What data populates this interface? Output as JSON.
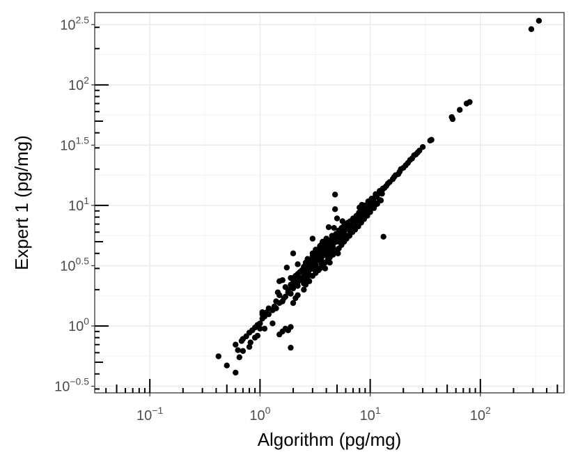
{
  "chart_data": {
    "type": "scatter",
    "xlabel": "Algorithm (pg/mg)",
    "ylabel": "Expert 1 (pg/mg)",
    "x_scale": "log10",
    "y_scale": "log10",
    "xlim": [
      0.0316,
      575
    ],
    "ylim": [
      0.2786,
      398
    ],
    "x_ticks": [
      {
        "value": 0.1,
        "base": "10",
        "exp": "−1"
      },
      {
        "value": 1,
        "base": "10",
        "exp": "0"
      },
      {
        "value": 10,
        "base": "10",
        "exp": "1"
      },
      {
        "value": 100,
        "base": "10",
        "exp": "2"
      }
    ],
    "y_ticks": [
      {
        "value": 0.3162,
        "base": "10",
        "exp": "−0.5"
      },
      {
        "value": 1,
        "base": "10",
        "exp": "0"
      },
      {
        "value": 3.162,
        "base": "10",
        "exp": "0.5"
      },
      {
        "value": 10,
        "base": "10",
        "exp": "1"
      },
      {
        "value": 31.62,
        "base": "10",
        "exp": "1.5"
      },
      {
        "value": 100,
        "base": "10",
        "exp": "2"
      },
      {
        "value": 316.2,
        "base": "10",
        "exp": "2.5"
      }
    ],
    "grid": true,
    "point_color": "#000000",
    "points": [
      [
        0.42,
        0.56
      ],
      [
        0.6,
        0.7
      ],
      [
        0.63,
        0.63
      ],
      [
        0.68,
        0.75
      ],
      [
        0.7,
        0.78
      ],
      [
        0.75,
        0.82
      ],
      [
        0.8,
        0.88
      ],
      [
        0.85,
        0.92
      ],
      [
        0.9,
        0.97
      ],
      [
        0.95,
        1.02
      ],
      [
        1.0,
        1.05
      ],
      [
        1.05,
        1.15
      ],
      [
        1.1,
        1.2
      ],
      [
        1.15,
        1.3
      ],
      [
        1.2,
        1.25
      ],
      [
        1.3,
        1.35
      ],
      [
        1.35,
        1.45
      ],
      [
        1.4,
        1.4
      ],
      [
        1.5,
        1.55
      ],
      [
        1.6,
        1.6
      ],
      [
        1.65,
        1.7
      ],
      [
        1.7,
        1.75
      ],
      [
        1.8,
        1.9
      ],
      [
        1.9,
        1.85
      ],
      [
        2.0,
        2.05
      ],
      [
        2.1,
        2.2
      ],
      [
        2.2,
        2.3
      ],
      [
        2.3,
        2.4
      ],
      [
        2.4,
        2.45
      ],
      [
        2.5,
        2.6
      ],
      [
        2.6,
        2.7
      ],
      [
        2.7,
        2.8
      ],
      [
        2.8,
        2.9
      ],
      [
        2.9,
        3.0
      ],
      [
        3.0,
        3.1
      ],
      [
        3.1,
        3.3
      ],
      [
        3.2,
        3.2
      ],
      [
        3.3,
        3.5
      ],
      [
        3.4,
        3.6
      ],
      [
        3.5,
        3.7
      ],
      [
        3.6,
        3.9
      ],
      [
        3.7,
        3.8
      ],
      [
        3.8,
        4.0
      ],
      [
        3.9,
        4.2
      ],
      [
        4.0,
        4.3
      ],
      [
        4.2,
        4.5
      ],
      [
        4.3,
        4.4
      ],
      [
        4.4,
        4.7
      ],
      [
        4.5,
        4.8
      ],
      [
        4.7,
        4.9
      ],
      [
        4.8,
        5.1
      ],
      [
        5.0,
        5.3
      ],
      [
        5.2,
        5.5
      ],
      [
        5.4,
        5.7
      ],
      [
        5.6,
        5.9
      ],
      [
        5.8,
        6.1
      ],
      [
        6.0,
        6.4
      ],
      [
        6.2,
        6.6
      ],
      [
        6.5,
        6.9
      ],
      [
        6.8,
        7.2
      ],
      [
        7.0,
        7.5
      ],
      [
        7.3,
        7.8
      ],
      [
        7.6,
        8.0
      ],
      [
        7.9,
        8.3
      ],
      [
        8.2,
        8.6
      ],
      [
        8.5,
        9.0
      ],
      [
        8.8,
        9.3
      ],
      [
        9.1,
        9.6
      ],
      [
        9.4,
        9.9
      ],
      [
        9.8,
        10.3
      ],
      [
        10.2,
        10.7
      ],
      [
        10.6,
        11.1
      ],
      [
        11.0,
        11.6
      ],
      [
        11.5,
        12.0
      ],
      [
        12.0,
        12.6
      ],
      [
        12.5,
        13.1
      ],
      [
        13.0,
        13.6
      ],
      [
        14.0,
        14.5
      ],
      [
        15.0,
        15.6
      ],
      [
        16.0,
        16.5
      ],
      [
        17.0,
        17.8
      ],
      [
        18.5,
        19.0
      ],
      [
        20.0,
        20.5
      ],
      [
        22.0,
        22.5
      ],
      [
        24.0,
        24.5
      ],
      [
        26.0,
        26.5
      ],
      [
        28.0,
        28.5
      ],
      [
        30.0,
        30.5
      ],
      [
        35.0,
        34.5
      ],
      [
        36.0,
        35.0
      ],
      [
        55.0,
        54.0
      ],
      [
        56.0,
        52.0
      ],
      [
        65.0,
        62.0
      ],
      [
        75.0,
        70.0
      ],
      [
        80.0,
        72.0
      ],
      [
        290.0,
        290.0
      ],
      [
        340.0,
        340.0
      ],
      [
        0.6,
        0.41
      ],
      [
        0.5,
        0.47
      ],
      [
        0.65,
        0.55
      ],
      [
        0.7,
        0.62
      ],
      [
        0.8,
        0.67
      ],
      [
        0.82,
        0.73
      ],
      [
        0.9,
        0.8
      ],
      [
        0.95,
        0.83
      ],
      [
        1.0,
        0.95
      ],
      [
        1.3,
        1.05
      ],
      [
        1.1,
        0.95
      ],
      [
        1.7,
        0.95
      ],
      [
        1.6,
        0.9
      ],
      [
        1.5,
        0.85
      ],
      [
        1.8,
        0.92
      ],
      [
        1.9,
        0.98
      ],
      [
        1.05,
        1.25
      ],
      [
        1.05,
        1.3
      ],
      [
        2.0,
        1.55
      ],
      [
        2.1,
        1.7
      ],
      [
        2.2,
        1.8
      ],
      [
        2.5,
        2.0
      ],
      [
        2.6,
        2.2
      ],
      [
        2.8,
        2.35
      ],
      [
        3.0,
        2.6
      ],
      [
        3.2,
        2.75
      ],
      [
        3.4,
        2.9
      ],
      [
        3.5,
        3.0
      ],
      [
        3.7,
        3.2
      ],
      [
        3.9,
        3.35
      ],
      [
        4.1,
        3.5
      ],
      [
        4.3,
        3.7
      ],
      [
        4.6,
        3.9
      ],
      [
        4.9,
        4.2
      ],
      [
        5.2,
        4.4
      ],
      [
        5.5,
        4.7
      ],
      [
        5.8,
        5.0
      ],
      [
        6.1,
        5.3
      ],
      [
        6.5,
        5.6
      ],
      [
        6.9,
        6.0
      ],
      [
        7.3,
        6.3
      ],
      [
        7.8,
        6.7
      ],
      [
        8.3,
        7.2
      ],
      [
        8.8,
        7.7
      ],
      [
        9.4,
        8.2
      ],
      [
        10.0,
        8.8
      ],
      [
        10.8,
        9.5
      ],
      [
        11.6,
        10.3
      ],
      [
        12.5,
        11.0
      ],
      [
        1.6,
        2.4
      ],
      [
        1.8,
        2.0
      ],
      [
        2.0,
        2.5
      ],
      [
        2.2,
        2.7
      ],
      [
        2.4,
        2.9
      ],
      [
        2.6,
        3.2
      ],
      [
        2.8,
        3.4
      ],
      [
        3.0,
        3.8
      ],
      [
        3.1,
        3.55
      ],
      [
        3.3,
        3.95
      ],
      [
        3.5,
        4.2
      ],
      [
        3.7,
        4.4
      ],
      [
        3.9,
        4.6
      ],
      [
        4.1,
        4.9
      ],
      [
        4.4,
        5.2
      ],
      [
        4.6,
        5.5
      ],
      [
        4.9,
        5.8
      ],
      [
        5.2,
        6.2
      ],
      [
        5.5,
        6.5
      ],
      [
        5.8,
        6.8
      ],
      [
        6.2,
        7.1
      ],
      [
        6.6,
        7.4
      ],
      [
        7.0,
        7.8
      ],
      [
        7.5,
        8.2
      ],
      [
        8.0,
        8.6
      ],
      [
        8.6,
        9.2
      ],
      [
        9.2,
        9.8
      ],
      [
        9.8,
        10.5
      ],
      [
        10.5,
        11.2
      ],
      [
        11.3,
        12.0
      ],
      [
        12.1,
        12.8
      ],
      [
        13.0,
        13.8
      ],
      [
        1.2,
        1.4
      ],
      [
        1.4,
        1.6
      ],
      [
        1.5,
        1.8
      ],
      [
        1.7,
        2.1
      ],
      [
        1.9,
        2.2
      ],
      [
        2.1,
        2.4
      ],
      [
        2.3,
        2.5
      ],
      [
        2.6,
        2.9
      ],
      [
        2.9,
        3.2
      ],
      [
        3.2,
        3.6
      ],
      [
        3.5,
        3.9
      ],
      [
        3.8,
        4.1
      ],
      [
        4.2,
        4.6
      ],
      [
        4.5,
        5.0
      ],
      [
        4.8,
        5.3
      ],
      [
        5.3,
        5.8
      ],
      [
        5.7,
        6.2
      ],
      [
        6.3,
        6.9
      ],
      [
        6.8,
        7.4
      ],
      [
        7.4,
        8.0
      ],
      [
        7.9,
        8.7
      ],
      [
        8.5,
        9.4
      ],
      [
        9.0,
        10.0
      ],
      [
        9.6,
        10.8
      ],
      [
        10.3,
        11.4
      ],
      [
        11.2,
        12.4
      ],
      [
        12.2,
        13.2
      ],
      [
        1.75,
        3.05
      ],
      [
        1.5,
        2.35
      ],
      [
        2.2,
        3.25
      ],
      [
        2.6,
        3.35
      ],
      [
        2.8,
        2.65
      ],
      [
        4.0,
        5.3
      ],
      [
        4.5,
        5.6
      ],
      [
        3.9,
        3.0
      ],
      [
        4.3,
        3.35
      ],
      [
        5.1,
        4.0
      ],
      [
        5.6,
        5.2
      ],
      [
        6.1,
        5.6
      ],
      [
        6.6,
        6.0
      ],
      [
        5.0,
        7.8
      ],
      [
        5.6,
        7.4
      ],
      [
        5.8,
        6.8
      ],
      [
        6.3,
        7.2
      ],
      [
        6.7,
        6.4
      ],
      [
        7.0,
        6.5
      ],
      [
        4.7,
        6.5
      ],
      [
        4.2,
        6.6
      ],
      [
        3.7,
        5.0
      ],
      [
        3.6,
        4.7
      ],
      [
        3.9,
        5.0
      ],
      [
        4.4,
        4.1
      ],
      [
        7.6,
        6.8
      ],
      [
        8.0,
        9.6
      ],
      [
        8.4,
        10.1
      ],
      [
        8.7,
        8.0
      ],
      [
        2.9,
        3.5
      ],
      [
        3.2,
        4.3
      ],
      [
        3.5,
        4.6
      ],
      [
        3.0,
        4.0
      ],
      [
        2.7,
        3.6
      ],
      [
        2.5,
        3.1
      ],
      [
        2.3,
        2.8
      ],
      [
        2.1,
        2.6
      ],
      [
        2.0,
        2.3
      ],
      [
        1.9,
        2.5
      ],
      [
        2.6,
        2.4
      ],
      [
        2.8,
        3.0
      ],
      [
        3.1,
        3.4
      ],
      [
        3.4,
        3.7
      ],
      [
        3.6,
        3.5
      ],
      [
        4.0,
        4.1
      ],
      [
        4.3,
        4.2
      ],
      [
        4.6,
        4.5
      ],
      [
        5.0,
        5.0
      ],
      [
        5.3,
        5.2
      ],
      [
        5.9,
        5.7
      ],
      [
        6.4,
        6.3
      ],
      [
        6.9,
        6.7
      ],
      [
        7.5,
        7.3
      ],
      [
        8.1,
        7.9
      ],
      [
        8.9,
        8.6
      ],
      [
        9.6,
        9.3
      ],
      [
        10.4,
        10.0
      ],
      [
        11.0,
        10.5
      ],
      [
        12.8,
        12.5
      ],
      [
        13.5,
        14.0
      ],
      [
        14.5,
        15.2
      ],
      [
        16.5,
        17.2
      ],
      [
        18.0,
        18.2
      ],
      [
        19.0,
        20.0
      ],
      [
        21.0,
        21.5
      ],
      [
        23.0,
        23.8
      ],
      [
        25.0,
        26.0
      ],
      [
        27.0,
        27.5
      ],
      [
        1.45,
        1.9
      ],
      [
        2.0,
        4.0
      ],
      [
        1.9,
        0.66
      ],
      [
        3.0,
        5.3
      ],
      [
        3.4,
        3.0
      ],
      [
        4.8,
        9.3
      ],
      [
        4.8,
        12.3
      ],
      [
        13.2,
        5.5
      ],
      [
        2.2,
        2.15
      ],
      [
        2.5,
        2.25
      ],
      [
        2.7,
        2.55
      ],
      [
        3.1,
        2.95
      ],
      [
        3.6,
        3.3
      ],
      [
        4.1,
        3.8
      ],
      [
        4.6,
        4.3
      ],
      [
        5.4,
        4.9
      ],
      [
        6.0,
        5.5
      ],
      [
        6.7,
        6.1
      ],
      [
        7.7,
        7.0
      ],
      [
        8.8,
        8.0
      ],
      [
        9.9,
        9.0
      ],
      [
        11.0,
        10.0
      ],
      [
        12.2,
        11.1
      ]
    ]
  }
}
